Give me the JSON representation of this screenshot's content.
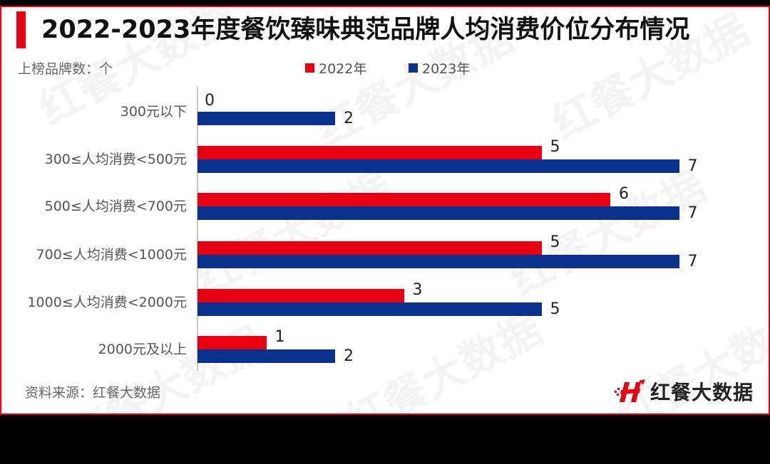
{
  "title": "2022-2023年度餐饮臻味典范品牌人均消费价位分布情况",
  "unit_label": "上榜品牌数：个",
  "legend": [
    {
      "label": "2022年",
      "color": "#e60012"
    },
    {
      "label": "2023年",
      "color": "#0b318f"
    }
  ],
  "source": "资料来源：红餐大数据",
  "logo_text": "红餐大数据",
  "watermark": "红餐大数据",
  "chart_data": {
    "type": "bar",
    "orientation": "horizontal",
    "title": "2022-2023年度餐饮臻味典范品牌人均消费价位分布情况",
    "xlabel": "",
    "ylabel": "上榜品牌数：个",
    "categories": [
      "300元以下",
      "300≤人均消费<500元",
      "500≤人均消费<700元",
      "700≤人均消费<1000元",
      "1000≤人均消费<2000元",
      "2000元及以上"
    ],
    "series": [
      {
        "name": "2022年",
        "color": "#e60012",
        "values": [
          0,
          5,
          6,
          5,
          3,
          1
        ]
      },
      {
        "name": "2023年",
        "color": "#0b318f",
        "values": [
          2,
          7,
          7,
          7,
          5,
          2
        ]
      }
    ],
    "xlim": [
      0,
      7
    ],
    "grid": false,
    "legend_position": "top",
    "data_labels": true
  }
}
